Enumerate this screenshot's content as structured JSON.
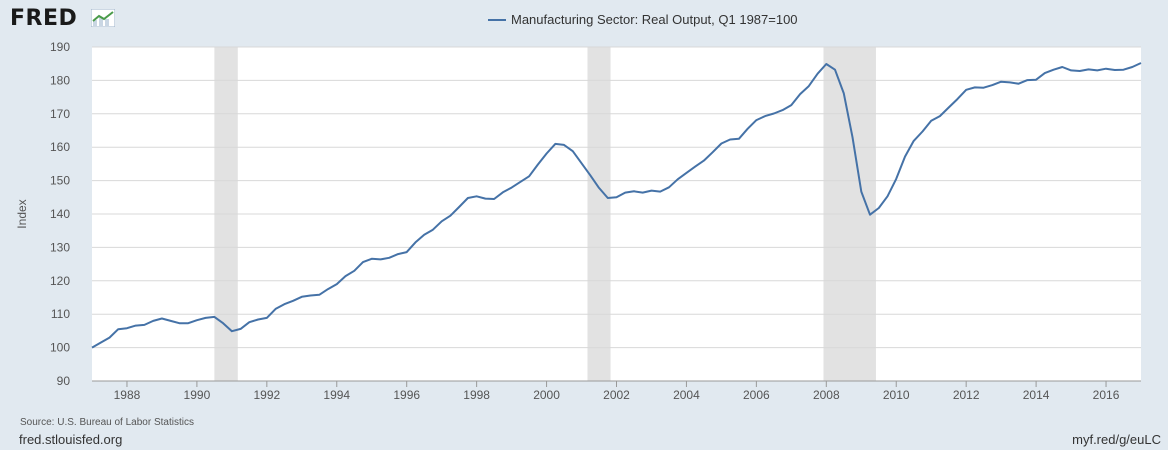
{
  "header": {
    "logo": "FRED",
    "logo_icon": "line-chart-icon"
  },
  "footer": {
    "source": "Source: U.S. Bureau of Labor Statistics",
    "site": "fred.stlouisfed.org",
    "short_url": "myf.red/g/euLC"
  },
  "colors": {
    "background": "#e1e9f0",
    "plot_background": "#ffffff",
    "series": "#4572a7",
    "recession": "#e2e2e2",
    "grid": "#d8d8d8"
  },
  "chart_data": {
    "type": "line",
    "title": "",
    "xlabel": "",
    "ylabel": "Index",
    "xlim": [
      1987.0,
      2017.0
    ],
    "ylim": [
      90,
      190
    ],
    "y_ticks": [
      90,
      100,
      110,
      120,
      130,
      140,
      150,
      160,
      170,
      180,
      190
    ],
    "x_ticks": [
      1988,
      1990,
      1992,
      1994,
      1996,
      1998,
      2000,
      2002,
      2004,
      2006,
      2008,
      2010,
      2012,
      2014,
      2016
    ],
    "grid": true,
    "legend_position": "top-center",
    "recessions": [
      {
        "start": 1990.5,
        "end": 1991.17
      },
      {
        "start": 2001.17,
        "end": 2001.83
      },
      {
        "start": 2007.92,
        "end": 2009.42
      }
    ],
    "series": [
      {
        "name": "Manufacturing Sector: Real Output, Q1 1987=100",
        "x": [
          1987.0,
          1987.25,
          1987.5,
          1987.75,
          1988.0,
          1988.25,
          1988.5,
          1988.75,
          1989.0,
          1989.25,
          1989.5,
          1989.75,
          1990.0,
          1990.25,
          1990.5,
          1990.75,
          1991.0,
          1991.25,
          1991.5,
          1991.75,
          1992.0,
          1992.25,
          1992.5,
          1992.75,
          1993.0,
          1993.25,
          1993.5,
          1993.75,
          1994.0,
          1994.25,
          1994.5,
          1994.75,
          1995.0,
          1995.25,
          1995.5,
          1995.75,
          1996.0,
          1996.25,
          1996.5,
          1996.75,
          1997.0,
          1997.25,
          1997.5,
          1997.75,
          1998.0,
          1998.25,
          1998.5,
          1998.75,
          1999.0,
          1999.25,
          1999.5,
          1999.75,
          2000.0,
          2000.25,
          2000.5,
          2000.75,
          2001.0,
          2001.25,
          2001.5,
          2001.75,
          2002.0,
          2002.25,
          2002.5,
          2002.75,
          2003.0,
          2003.25,
          2003.5,
          2003.75,
          2004.0,
          2004.25,
          2004.5,
          2004.75,
          2005.0,
          2005.25,
          2005.5,
          2005.75,
          2006.0,
          2006.25,
          2006.5,
          2006.75,
          2007.0,
          2007.25,
          2007.5,
          2007.75,
          2008.0,
          2008.25,
          2008.5,
          2008.75,
          2009.0,
          2009.25,
          2009.5,
          2009.75,
          2010.0,
          2010.25,
          2010.5,
          2010.75,
          2011.0,
          2011.25,
          2011.5,
          2011.75,
          2012.0,
          2012.25,
          2012.5,
          2012.75,
          2013.0,
          2013.25,
          2013.5,
          2013.75,
          2014.0,
          2014.25,
          2014.5,
          2014.75,
          2015.0,
          2015.25,
          2015.5,
          2015.75,
          2016.0,
          2016.25,
          2016.5,
          2016.75,
          2017.0
        ],
        "values": [
          100.0,
          101.5,
          103.0,
          105.5,
          105.8,
          106.6,
          106.8,
          108.0,
          108.7,
          108.0,
          107.3,
          107.3,
          108.2,
          108.9,
          109.2,
          107.3,
          104.9,
          105.6,
          107.6,
          108.4,
          108.9,
          111.6,
          113.0,
          114.0,
          115.2,
          115.6,
          115.8,
          117.5,
          119.0,
          121.4,
          123.0,
          125.6,
          126.6,
          126.4,
          126.9,
          128.0,
          128.6,
          131.5,
          133.8,
          135.3,
          137.8,
          139.5,
          142.1,
          144.8,
          145.3,
          144.6,
          144.5,
          146.5,
          147.9,
          149.6,
          151.3,
          154.8,
          158.1,
          161.0,
          160.7,
          158.8,
          155.2,
          151.6,
          147.8,
          144.8,
          145.0,
          146.4,
          146.8,
          146.4,
          147.0,
          146.7,
          148.0,
          150.4,
          152.3,
          154.2,
          156.0,
          158.5,
          161.1,
          162.3,
          162.5,
          165.5,
          168.1,
          169.3,
          170.1,
          171.1,
          172.6,
          175.9,
          178.3,
          182.0,
          184.9,
          183.2,
          176.1,
          163.0,
          146.7,
          139.8,
          141.8,
          145.3,
          150.5,
          157.2,
          161.9,
          164.7,
          167.9,
          169.3,
          171.9,
          174.4,
          177.2,
          177.9,
          177.8,
          178.6,
          179.6,
          179.4,
          179.0,
          180.1,
          180.2,
          182.2,
          183.2,
          184.0,
          183.0,
          182.8,
          183.3,
          183.0,
          183.5,
          183.1,
          183.2,
          184.0,
          185.2
        ]
      }
    ]
  }
}
